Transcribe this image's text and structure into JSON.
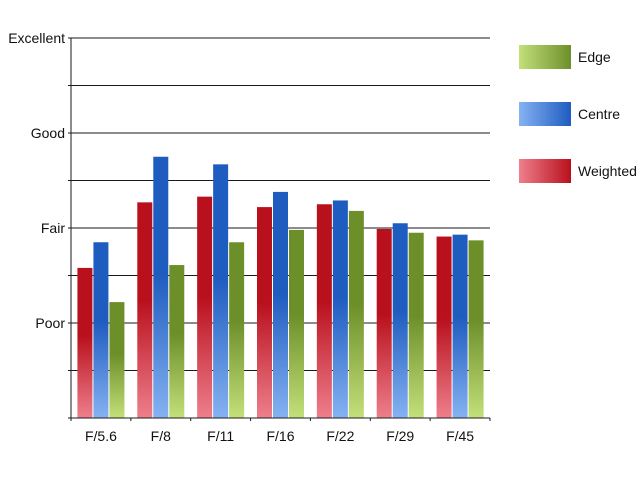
{
  "chart_data": {
    "type": "bar",
    "title": "",
    "xlabel": "",
    "ylabel": "",
    "categories": [
      "F/5.6",
      "F/8",
      "F/11",
      "F/16",
      "F/22",
      "F/29",
      "F/45"
    ],
    "y_tick_labels": [
      "Poor",
      "Fair",
      "Good",
      "Excellent"
    ],
    "y_tick_values": [
      1,
      2,
      3,
      4
    ],
    "ylim": [
      0,
      4
    ],
    "grid": true,
    "legend_position": "right",
    "series": [
      {
        "name": "Weighted",
        "values": [
          1.58,
          2.27,
          2.33,
          2.22,
          2.25,
          1.99,
          1.91
        ],
        "color_light": "#ee7f8c",
        "color_dark": "#b8101c"
      },
      {
        "name": "Centre",
        "values": [
          1.85,
          2.75,
          2.67,
          2.38,
          2.29,
          2.05,
          1.93
        ],
        "color_light": "#85b2f2",
        "color_dark": "#1f5cc0"
      },
      {
        "name": "Edge",
        "values": [
          1.22,
          1.61,
          1.85,
          1.98,
          2.18,
          1.95,
          1.87
        ],
        "color_light": "#c3e07a",
        "color_dark": "#6d8f2a"
      }
    ],
    "legend_order": [
      "Edge",
      "Centre",
      "Weighted"
    ]
  }
}
